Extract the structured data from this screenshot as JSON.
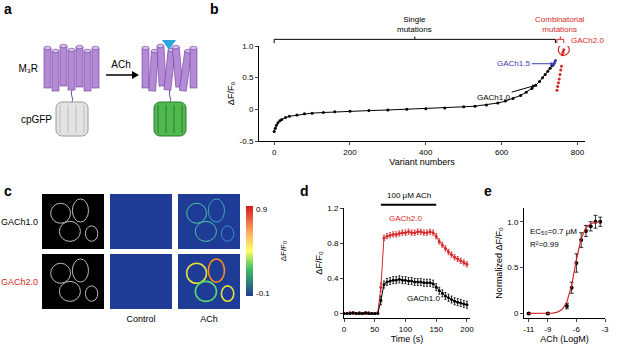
{
  "panel_a": {
    "panel": "a",
    "receptor": "M₃R",
    "ligand": "ACh",
    "sensor": "cpGFP"
  },
  "panel_c": {
    "panel": "c",
    "rows": [
      {
        "label": "GACh1.0",
        "color": "#000000"
      },
      {
        "label": "GACh2.0",
        "color": "#d62728"
      }
    ],
    "columns": [
      "Control",
      "ACh"
    ],
    "colorbar": {
      "title": "ΔF/F₀",
      "range": [
        -0.1,
        0.9
      ]
    }
  },
  "chart_data": [
    {
      "panel": "b",
      "type": "scatter",
      "x_label": "Variant numbers",
      "y_label": "ΔF/F₀",
      "xlim": [
        -40,
        820
      ],
      "xticks": [
        0,
        200,
        400,
        600,
        800
      ],
      "ylim": [
        -0.5,
        1.0
      ],
      "yticks": [
        -0.5,
        0,
        0.5,
        {
          "value": 1.0,
          "label": "1.0"
        }
      ],
      "grid": false,
      "series": [
        {
          "color": "#000000",
          "marker": "circle",
          "line_style": "solid",
          "x": [
            0,
            3,
            6,
            10,
            15,
            20,
            30,
            40,
            60,
            80,
            100,
            130,
            160,
            200,
            250,
            300,
            350,
            400,
            450,
            500,
            530,
            560,
            590,
            610,
            630,
            650,
            665,
            680,
            690,
            700,
            708,
            715,
            722,
            728,
            733
          ],
          "values": [
            -0.35,
            -0.3,
            -0.25,
            -0.21,
            -0.18,
            -0.16,
            -0.13,
            -0.11,
            -0.09,
            -0.07,
            -0.06,
            -0.05,
            -0.04,
            -0.03,
            -0.02,
            -0.01,
            0,
            0.01,
            0.02,
            0.04,
            0.05,
            0.07,
            0.1,
            0.13,
            0.17,
            0.22,
            0.27,
            0.33,
            0.38,
            0.44,
            0.5,
            0.55,
            0.6,
            0.65,
            0.69
          ]
        },
        {
          "color": "#3b3bb3",
          "marker": "circle",
          "x": [
            736,
            738,
            740,
            742
          ],
          "values": [
            0.7,
            0.72,
            0.74,
            0.77
          ]
        },
        {
          "color": "#d62728",
          "marker": "circle",
          "x": [
            746,
            748,
            750,
            752,
            754,
            756,
            758,
            760,
            762,
            764
          ],
          "values": [
            0.3,
            0.36,
            0.42,
            0.48,
            0.55,
            0.62,
            0.68,
            0.86,
            0.9,
            0.94
          ]
        }
      ],
      "groups": [
        {
          "text": "Single mutations",
          "color": "#000000",
          "from": 0,
          "to": 742
        },
        {
          "text": "Combinatorial mutations",
          "color": "#d62728",
          "from": 746,
          "to": 764
        }
      ],
      "highlights": [
        {
          "text": "GACh1.0",
          "x": 690,
          "y": 0.38,
          "color": "#000000"
        },
        {
          "text": "GACh1.5",
          "x": 738,
          "y": 0.72,
          "color": "#3b3bb3"
        },
        {
          "text": "GACh2.0",
          "x": 764,
          "y": 0.94,
          "color": "#d62728",
          "marker": "circle-open"
        }
      ]
    },
    {
      "panel": "d",
      "type": "line",
      "x_label": "Time (s)",
      "y_label": "ΔF/F₀",
      "xlim": [
        0,
        205
      ],
      "xticks": [
        0,
        50,
        100,
        150,
        200
      ],
      "ylim": [
        -0.05,
        1.2
      ],
      "yticks": [
        0,
        0.4,
        0.8,
        1.2
      ],
      "grid": false,
      "stimulus": {
        "text": "100 μM ACh",
        "start": 60,
        "end": 150
      },
      "x": [
        0,
        5,
        10,
        15,
        20,
        25,
        30,
        35,
        40,
        45,
        50,
        55,
        60,
        65,
        70,
        75,
        80,
        85,
        90,
        95,
        100,
        105,
        110,
        115,
        120,
        125,
        130,
        135,
        140,
        145,
        150,
        155,
        160,
        165,
        170,
        175,
        180,
        185,
        190,
        195,
        200
      ],
      "series": [
        {
          "name": "GACh2.0",
          "color": "#d62728",
          "marker": "circle",
          "values": [
            0,
            0,
            0.01,
            0,
            0,
            0.01,
            0,
            0,
            0.01,
            0,
            0,
            0.01,
            0.3,
            0.86,
            0.88,
            0.89,
            0.9,
            0.9,
            0.91,
            0.92,
            0.92,
            0.93,
            0.92,
            0.92,
            0.93,
            0.93,
            0.92,
            0.92,
            0.93,
            0.92,
            0.88,
            0.82,
            0.78,
            0.74,
            0.7,
            0.67,
            0.64,
            0.62,
            0.6,
            0.58,
            0.56
          ],
          "error": [
            0.01,
            0.01,
            0.01,
            0.01,
            0.01,
            0.01,
            0.01,
            0.01,
            0.01,
            0.01,
            0.01,
            0.01,
            0.05,
            0.03,
            0.03,
            0.03,
            0.03,
            0.03,
            0.03,
            0.03,
            0.03,
            0.03,
            0.03,
            0.03,
            0.03,
            0.03,
            0.03,
            0.03,
            0.03,
            0.03,
            0.03,
            0.03,
            0.03,
            0.03,
            0.03,
            0.03,
            0.03,
            0.03,
            0.03,
            0.03,
            0.03
          ]
        },
        {
          "name": "GACh1.0",
          "color": "#000000",
          "marker": "circle",
          "values": [
            0,
            0,
            0,
            0.01,
            0,
            0,
            0,
            0.01,
            0,
            0,
            0,
            0,
            0.15,
            0.33,
            0.36,
            0.37,
            0.38,
            0.38,
            0.39,
            0.38,
            0.38,
            0.37,
            0.37,
            0.36,
            0.36,
            0.36,
            0.35,
            0.35,
            0.35,
            0.34,
            0.3,
            0.26,
            0.23,
            0.2,
            0.18,
            0.16,
            0.14,
            0.13,
            0.12,
            0.11,
            0.1
          ],
          "error": [
            0.01,
            0.01,
            0.01,
            0.01,
            0.01,
            0.01,
            0.01,
            0.01,
            0.01,
            0.01,
            0.01,
            0.01,
            0.05,
            0.04,
            0.04,
            0.04,
            0.04,
            0.04,
            0.04,
            0.04,
            0.04,
            0.04,
            0.04,
            0.04,
            0.04,
            0.04,
            0.04,
            0.04,
            0.04,
            0.04,
            0.04,
            0.04,
            0.04,
            0.04,
            0.04,
            0.04,
            0.04,
            0.04,
            0.04,
            0.04,
            0.04
          ]
        }
      ]
    },
    {
      "panel": "e",
      "type": "scatter",
      "x_label": "ACh (LogM)",
      "y_label": "Normalized ΔF/F₀",
      "xlim": [
        -11.5,
        -3
      ],
      "xticks": [
        -11,
        -9,
        -6,
        -3
      ],
      "ylim": [
        -0.05,
        1.15
      ],
      "yticks": [
        0,
        0.5,
        {
          "value": 1.0,
          "label": "1.0"
        }
      ],
      "grid": false,
      "annotations": [
        "EC₅₀=0.7 μM",
        "R²=0.99"
      ],
      "series": [
        {
          "type": "scatter",
          "color": "#000000",
          "marker": "circle",
          "x": [
            -11,
            -9,
            -7,
            -6.5,
            -6,
            -5.5,
            -5,
            -4.5,
            -4,
            -3.5
          ],
          "values": [
            0,
            0,
            0.08,
            0.28,
            0.55,
            0.8,
            0.9,
            0.95,
            1.0,
            1.0
          ],
          "error": [
            0.01,
            0.01,
            0.03,
            0.06,
            0.1,
            0.08,
            0.06,
            0.05,
            0.07,
            0.05
          ]
        },
        {
          "type": "line",
          "color": "#d62728",
          "line_style": "solid",
          "x": [
            -11,
            -10,
            -9,
            -8.5,
            -8,
            -7.5,
            -7,
            -6.5,
            -6,
            -5.5,
            -5,
            -4.5,
            -4,
            -3.5
          ],
          "values": [
            0,
            0,
            0.001,
            0.004,
            0.014,
            0.043,
            0.124,
            0.309,
            0.585,
            0.817,
            0.934,
            0.978,
            0.993,
            0.998
          ]
        }
      ]
    }
  ]
}
